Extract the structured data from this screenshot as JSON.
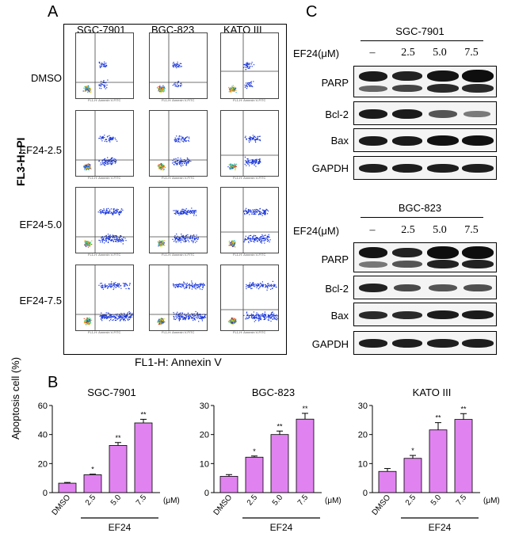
{
  "panels": {
    "a": "A",
    "b": "B",
    "c": "C"
  },
  "flow": {
    "columns": [
      "SGC-7901",
      "BGC-823",
      "KATO III"
    ],
    "rows": [
      "DMSO",
      "EF24-2.5",
      "EF24-5.0",
      "EF24-7.5"
    ],
    "y_axis_label": "FL3-H: PI",
    "x_axis_label": "FL1-H: Annexin V",
    "mini_x_label": "FL1-H: Annexin V-FITC"
  },
  "western": [
    {
      "cell_line": "SGC-7901",
      "treatment_label": "EF24(μM)",
      "lanes": [
        "–",
        "2.5",
        "5.0",
        "7.5"
      ],
      "proteins": [
        "PARP",
        "Bcl-2",
        "Bax",
        "GAPDH"
      ]
    },
    {
      "cell_line": "BGC-823",
      "treatment_label": "EF24(μM)",
      "lanes": [
        "–",
        "2.5",
        "5.0",
        "7.5"
      ],
      "proteins": [
        "PARP",
        "Bcl-2",
        "Bax",
        "GAPDH"
      ]
    }
  ],
  "chart_data": [
    {
      "type": "bar",
      "title": "SGC-7901",
      "ylabel": "Apoptosis cell (%)",
      "xlabel": "EF24",
      "unit_label": "(μM)",
      "categories": [
        "DMSO",
        "2.5",
        "5.0",
        "7.5"
      ],
      "values": [
        6.5,
        12.3,
        32.5,
        48
      ],
      "errors": [
        0.5,
        0.4,
        2.0,
        2.5
      ],
      "significance": [
        "",
        "*",
        "**",
        "**"
      ],
      "ylim": [
        0,
        60
      ],
      "yticks": [
        0,
        20,
        40,
        60
      ],
      "bar_color": "#e083f0"
    },
    {
      "type": "bar",
      "title": "BGC-823",
      "ylabel": "",
      "xlabel": "EF24",
      "unit_label": "(μM)",
      "categories": [
        "DMSO",
        "2.5",
        "5.0",
        "7.5"
      ],
      "values": [
        5.6,
        12.2,
        20,
        25.3
      ],
      "errors": [
        0.6,
        0.4,
        1.2,
        2.0
      ],
      "significance": [
        "",
        "*",
        "**",
        "**"
      ],
      "ylim": [
        0,
        30
      ],
      "yticks": [
        0,
        10,
        20,
        30
      ],
      "bar_color": "#e083f0"
    },
    {
      "type": "bar",
      "title": "KATO III",
      "ylabel": "",
      "xlabel": "EF24",
      "unit_label": "(μM)",
      "categories": [
        "DMSO",
        "2.5",
        "5.0",
        "7.5"
      ],
      "values": [
        7.3,
        11.8,
        21.6,
        25.2
      ],
      "errors": [
        1.0,
        1.0,
        2.5,
        2.0
      ],
      "significance": [
        "",
        "*",
        "**",
        "**"
      ],
      "ylim": [
        0,
        30
      ],
      "yticks": [
        0,
        10,
        20,
        30
      ],
      "bar_color": "#e083f0"
    }
  ]
}
